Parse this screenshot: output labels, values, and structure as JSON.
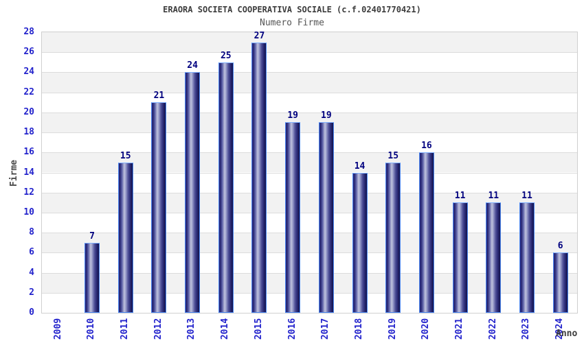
{
  "header": {
    "title": "ERAORA SOCIETA COOPERATIVA SOCIALE (c.f.02401770421)",
    "subtitle": "Numero Firme"
  },
  "chart_data": {
    "type": "bar",
    "title": "ERAORA SOCIETA COOPERATIVA SOCIALE (c.f.02401770421)",
    "subtitle": "Numero Firme",
    "xlabel": "Anno",
    "ylabel": "Firme",
    "categories": [
      "2009",
      "2010",
      "2011",
      "2012",
      "2013",
      "2014",
      "2015",
      "2016",
      "2017",
      "2018",
      "2019",
      "2020",
      "2021",
      "2022",
      "2023",
      "2024"
    ],
    "values": [
      0,
      7,
      15,
      21,
      24,
      25,
      27,
      19,
      19,
      14,
      15,
      16,
      11,
      11,
      11,
      6
    ],
    "ylim": [
      0,
      28
    ],
    "ytick_step": 2,
    "yticks": [
      0,
      2,
      4,
      6,
      8,
      10,
      12,
      14,
      16,
      18,
      20,
      22,
      24,
      26,
      28
    ],
    "grid": true,
    "legend_position": "none",
    "value_labels_shown": true,
    "colors": {
      "bar_border": "#4a86f0",
      "bar_dark": "#14144c",
      "bar_highlight": "#c0c3de",
      "value_label": "#00007f",
      "tick_label": "#2222cc",
      "band_gray": "#f2f2f2",
      "band_white": "#ffffff",
      "grid_line": "#dcdcdc",
      "plot_border": "#cfcfcf",
      "title_color": "#3c3c3c",
      "axis_label_color": "#4a4a4a"
    }
  }
}
